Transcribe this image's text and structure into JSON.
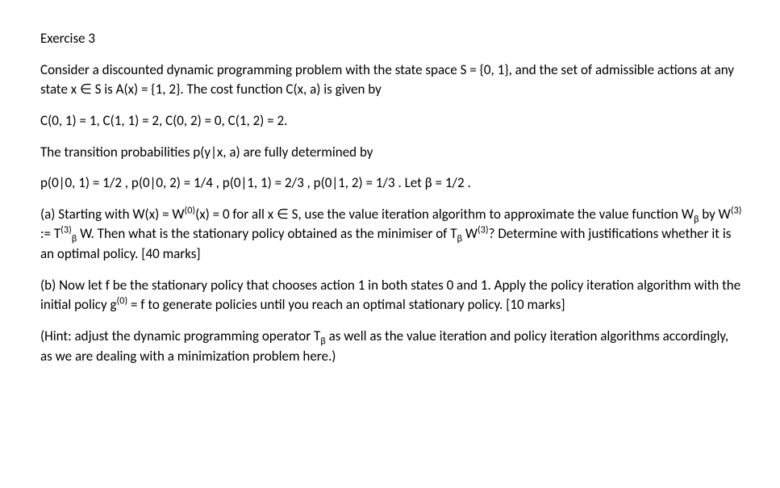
{
  "title": "Exercise 3",
  "p1": "Consider a discounted dynamic programming problem with the state space S = {0, 1}, and the set of admissible actions at any state x ∈ S is A(x) = {1, 2}. The cost function C(x, a) is given by",
  "p2": "C(0, 1) = 1, C(1, 1) = 2, C(0, 2) = 0, C(1, 2) = 2.",
  "p3": "The transition probabilities p(y|x, a) are fully determined by",
  "p4": "p(0|0, 1) = 1/2 , p(0|0, 2) = 1/4 , p(0|1, 1) = 2/3 , p(0|1, 2) = 1/3 . Let β = 1/2 .",
  "p5": {
    "t1": "(a) Starting with W(x) = W",
    "sup1": "(0)",
    "t2": "(x) = 0 for all x ∈ S, use the value iteration algorithm to approximate the value function W",
    "sub1": "β",
    "t3": " by W",
    "sup2": "(3)",
    "t4": " := T",
    "sup3": "(3)",
    "sub2": "β",
    "t5": " W. Then what is the stationary policy obtained as the minimiser of T",
    "sub3": "β",
    "t6": " W",
    "sup4": "(3)",
    "t7": "? Determine with justifications whether it is an optimal policy. [40 marks]"
  },
  "p6": {
    "t1": "(b) Now let f be the stationary policy that chooses action 1 in both states 0 and 1. Apply the policy iteration algorithm with the initial policy g",
    "sup1": "(0)",
    "t2": " = f to generate policies until you reach an optimal stationary policy. [10 marks]"
  },
  "p7": {
    "t1": " (Hint: adjust the dynamic programming operator T",
    "sub1": "β",
    "t2": " as well as the value iteration and policy iteration algorithms accordingly, as we are dealing with a minimization problem here.)"
  }
}
